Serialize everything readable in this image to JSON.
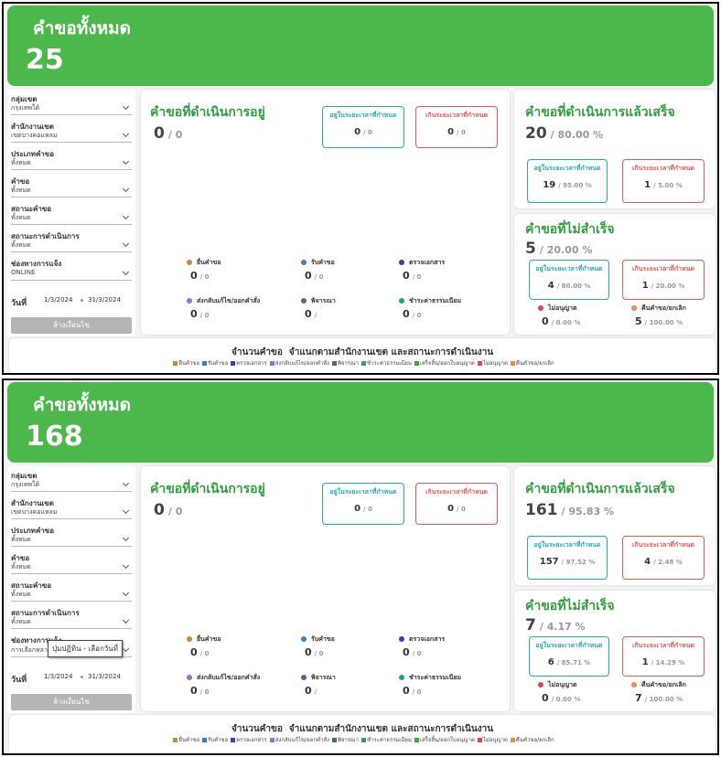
{
  "panels": [
    {
      "header": {
        "title": "คำขอทั้งหมด",
        "total": 25
      },
      "filters": [
        {
          "label": "กลุ่มเขต",
          "value": "กรุงเทพใต้"
        },
        {
          "label": "สำนักงานเขต",
          "value": "เขตบางคอแหลม"
        },
        {
          "label": "ประเภทคำขอ",
          "value": "ทั้งหมด"
        },
        {
          "label": "คำขอ",
          "value": "ทั้งหมด"
        },
        {
          "label": "สถานะคำขอ",
          "value": "ทั้งหมด"
        },
        {
          "label": "สถานะการดำเนินการ",
          "value": "ทั้งหมด"
        }
      ],
      "channel": {
        "label": "ช่องทางการแจ้ง",
        "value": "ONLINE"
      },
      "date": {
        "label": "วันที่",
        "from": "1/3/2024",
        "to": "31/3/2024"
      },
      "clear_button": "ล้างเงื่อนไข",
      "in_progress": {
        "title": "คำขอที่ดำเนินการอยู่",
        "count": 0,
        "share": "/ 0",
        "within": {
          "label": "อยู่ในระยะเวลาที่กำหนด",
          "count": 0,
          "share": "/ 0"
        },
        "over": {
          "label": "เกินระยะเวลาที่กำหนด",
          "count": 0,
          "share": "/ 0"
        },
        "statuses": [
          {
            "label": "ยื่นคำขอ",
            "color": "#c8893c",
            "count": 0,
            "share": "/ 0"
          },
          {
            "label": "รับคำขอ",
            "color": "#2f80d6",
            "count": 0,
            "share": "/ 0"
          },
          {
            "label": "ตรวจเอกสาร",
            "color": "#3b3db3",
            "count": 0,
            "share": "/ 0"
          },
          {
            "label": "ส่งกลับแก้ไข/ออกคำสั่ง",
            "color": "#9b6bd6",
            "count": 0,
            "share": "/ 0"
          },
          {
            "label": "พิจารณา",
            "color": "#4b6b8b",
            "count": 0,
            "share": "/"
          },
          {
            "label": "ชำระค่าธรรมเนียม",
            "color": "#2a9a8a",
            "count": 0,
            "share": "/ 0"
          }
        ]
      },
      "completed": {
        "title": "คำขอที่ดำเนินการแล้วเสร็จ",
        "count": 20,
        "share": "/ 80.00 %",
        "within": {
          "label": "อยู่ในระยะเวลาที่กำหนด",
          "count": 19,
          "share": "/ 95.00 %"
        },
        "over": {
          "label": "เกินระยะเวลาที่กำหนด",
          "count": 1,
          "share": "/ 5.00 %"
        }
      },
      "failed": {
        "title": "คำขอที่ไม่สำเร็จ",
        "count": 5,
        "share": "/ 20.00 %",
        "within": {
          "label": "อยู่ในระยะเวลาที่กำหนด",
          "count": 4,
          "share": "/ 80.00 %"
        },
        "over": {
          "label": "เกินระยะเวลาที่กำหนด",
          "count": 1,
          "share": "/ 20.00 %"
        },
        "outcomes": [
          {
            "label": "ไม่อนุญาต",
            "color": "#e04646",
            "count": 0,
            "share": "/ 0.00 %"
          },
          {
            "label": "คืนคำขอ/ยกเลิก",
            "color": "#f08a50",
            "count": 5,
            "share": "/ 100.00 %"
          }
        ]
      },
      "chart": {
        "title": "จำนวนคำขอ  จำแนกตามสำนักงานเขต และสถานะการดำเนินงาน",
        "legend": [
          {
            "label": "ยื่นคำขอ",
            "color": "#c8893c"
          },
          {
            "label": "รับคำขอ",
            "color": "#2f80d6"
          },
          {
            "label": "ตรวจเอกสาร",
            "color": "#3b3db3"
          },
          {
            "label": "ส่งกลับแก้ไข/ออกคำสั่ง",
            "color": "#9b6bd6"
          },
          {
            "label": "พิจารณา",
            "color": "#4b6b8b"
          },
          {
            "label": "ชำระค่าธรรมเนียม",
            "color": "#2a9a8a"
          },
          {
            "label": "เสร็จสิ้น/ออกใบอนุญาต",
            "color": "#3aa83a"
          },
          {
            "label": "ไม่อนุญาต",
            "color": "#e04646"
          },
          {
            "label": "คืนคำขอ/ยกเลิก",
            "color": "#f08a50"
          }
        ]
      }
    },
    {
      "header": {
        "title": "คำขอทั้งหมด",
        "total": 168
      },
      "filters": [
        {
          "label": "กลุ่มเขต",
          "value": "กรุงเทพใต้"
        },
        {
          "label": "สำนักงานเขต",
          "value": "เขตบางคอแหลม"
        },
        {
          "label": "ประเภทคำขอ",
          "value": "ทั้งหมด"
        },
        {
          "label": "คำขอ",
          "value": "ทั้งหมด"
        },
        {
          "label": "สถานะคำขอ",
          "value": "ทั้งหมด"
        },
        {
          "label": "สถานะการดำเนินการ",
          "value": "ทั้งหมด"
        }
      ],
      "channel": {
        "label": "ช่องทางการแจ้ง",
        "value": "การเลือกหลาย"
      },
      "tooltip": "ปุ่มปฏิทิน - เลือกวันที่",
      "date": {
        "label": "วันที่",
        "from": "1/3/2024",
        "to": "31/3/2024"
      },
      "clear_button": "ล้างเงื่อนไข",
      "in_progress": {
        "title": "คำขอที่ดำเนินการอยู่",
        "count": 0,
        "share": "/ 0",
        "within": {
          "label": "อยู่ในระยะเวลาที่กำหนด",
          "count": 0,
          "share": "/ 0"
        },
        "over": {
          "label": "เกินระยะเวลาที่กำหนด",
          "count": 0,
          "share": "/ 0"
        },
        "statuses": [
          {
            "label": "ยื่นคำขอ",
            "color": "#c8893c",
            "count": 0,
            "share": "/ 0"
          },
          {
            "label": "รับคำขอ",
            "color": "#2f80d6",
            "count": 0,
            "share": "/ 0"
          },
          {
            "label": "ตรวจเอกสาร",
            "color": "#3b3db3",
            "count": 0,
            "share": "/ 0"
          },
          {
            "label": "ส่งกลับแก้ไข/ออกคำสั่ง",
            "color": "#9b6bd6",
            "count": 0,
            "share": "/ 0"
          },
          {
            "label": "พิจารณา",
            "color": "#4b6b8b",
            "count": 0,
            "share": "/"
          },
          {
            "label": "ชำระค่าธรรมเนียม",
            "color": "#2a9a8a",
            "count": 0,
            "share": "/ 0"
          }
        ]
      },
      "completed": {
        "title": "คำขอที่ดำเนินการแล้วเสร็จ",
        "count": 161,
        "share": "/ 95.83 %",
        "within": {
          "label": "อยู่ในระยะเวลาที่กำหนด",
          "count": 157,
          "share": "/ 97.52 %"
        },
        "over": {
          "label": "เกินระยะเวลาที่กำหนด",
          "count": 4,
          "share": "/ 2.48 %"
        }
      },
      "failed": {
        "title": "คำขอที่ไม่สำเร็จ",
        "count": 7,
        "share": "/ 4.17 %",
        "within": {
          "label": "อยู่ในระยะเวลาที่กำหนด",
          "count": 6,
          "share": "/ 85.71 %"
        },
        "over": {
          "label": "เกินระยะเวลาที่กำหนด",
          "count": 1,
          "share": "/ 14.29 %"
        },
        "outcomes": [
          {
            "label": "ไม่อนุญาต",
            "color": "#e04646",
            "count": 0,
            "share": "/ 0.00 %"
          },
          {
            "label": "คืนคำขอ/ยกเลิก",
            "color": "#f08a50",
            "count": 7,
            "share": "/ 100.00 %"
          }
        ]
      },
      "chart": {
        "title": "จำนวนคำขอ  จำแนกตามสำนักงานเขต และสถานะการดำเนินงาน",
        "legend": [
          {
            "label": "ยื่นคำขอ",
            "color": "#c8893c"
          },
          {
            "label": "รับคำขอ",
            "color": "#2f80d6"
          },
          {
            "label": "ตรวจเอกสาร",
            "color": "#3b3db3"
          },
          {
            "label": "ส่งกลับแก้ไข/ออกคำสั่ง",
            "color": "#9b6bd6"
          },
          {
            "label": "พิจารณา",
            "color": "#4b6b8b"
          },
          {
            "label": "ชำระค่าธรรมเนียม",
            "color": "#2a9a8a"
          },
          {
            "label": "เสร็จสิ้น/ออกใบอนุญาต",
            "color": "#3aa83a"
          },
          {
            "label": "ไม่อนุญาต",
            "color": "#e04646"
          },
          {
            "label": "คืนคำขอ/ยกเลิก",
            "color": "#f08a50"
          }
        ]
      }
    }
  ]
}
